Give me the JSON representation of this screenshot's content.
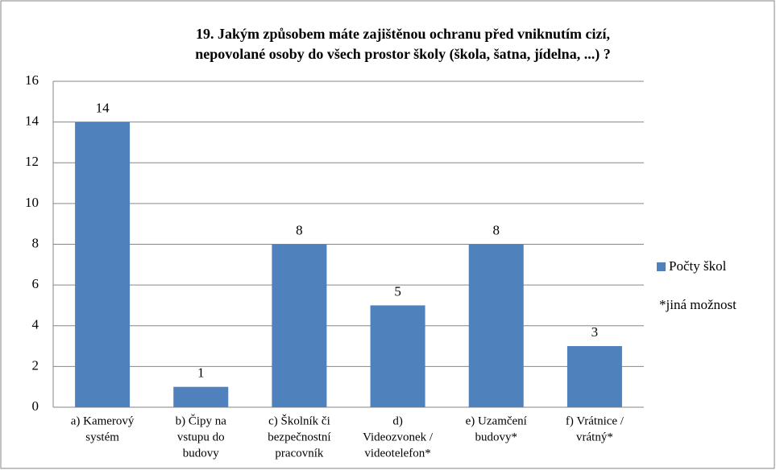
{
  "chart_data": {
    "type": "bar",
    "title": [
      "19. Jakým způsobem máte zajištěnou ochranu před vniknutím cizí,",
      "nepovolané osoby do všech prostor školy (škola, šatna, jídelna, ...) ?"
    ],
    "categories": [
      [
        "a) Kamerový",
        "systém"
      ],
      [
        "b) Čipy na",
        "vstupu do",
        "budovy"
      ],
      [
        "c) Školník či",
        "bezpečnostní",
        "pracovník"
      ],
      [
        "d)",
        "Videozvonek /",
        "videotelefon*"
      ],
      [
        "e) Uzamčení",
        "budovy*"
      ],
      [
        "f) Vrátnice /",
        "vrátný*"
      ]
    ],
    "series": [
      {
        "name": "Počty škol",
        "color": "#4f81bd",
        "values": [
          14,
          1,
          8,
          5,
          8,
          3
        ]
      }
    ],
    "annotation": "*jiná možnost",
    "ylim": [
      0,
      16
    ],
    "yticks": [
      0,
      2,
      4,
      6,
      8,
      10,
      12,
      14,
      16
    ],
    "grid": true,
    "legend": "right"
  }
}
